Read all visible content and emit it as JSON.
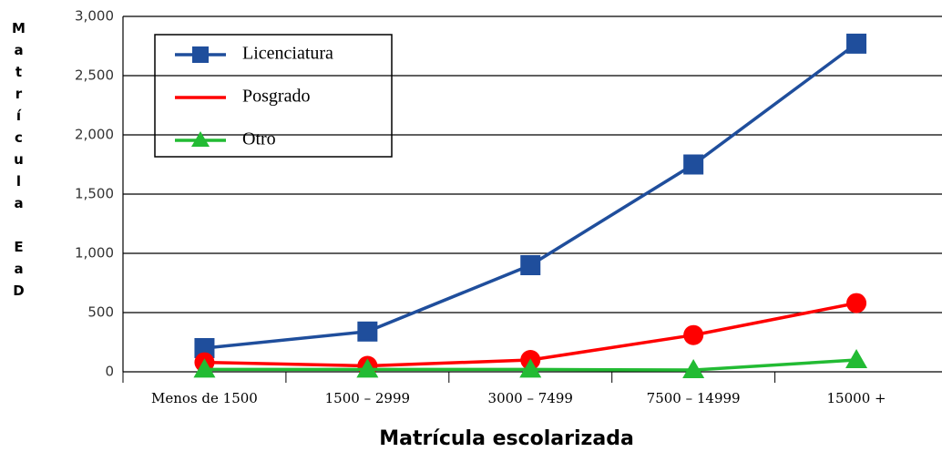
{
  "chart_data": {
    "type": "line",
    "xlabel": "Matrícula escolarizada",
    "ylabel": "Matrícula EaD",
    "categories": [
      "Menos de 1500",
      "1500 – 2999",
      "3000 – 7499",
      "7500 – 14999",
      "15000 +"
    ],
    "series": [
      {
        "name": "Licenciatura",
        "color": "#1f4e9c",
        "marker": "square",
        "values": [
          200,
          340,
          900,
          1750,
          2770
        ]
      },
      {
        "name": "Posgrado",
        "color": "#ff0000",
        "marker": "circle",
        "values": [
          80,
          50,
          100,
          310,
          580
        ]
      },
      {
        "name": "Otro",
        "color": "#22bb33",
        "marker": "triangle",
        "values": [
          20,
          20,
          20,
          15,
          100
        ]
      }
    ],
    "ylim": [
      0,
      3000
    ],
    "yticks": [
      0,
      500,
      {
        "value": 1000,
        "label": "1,000"
      },
      {
        "value": 1500,
        "label": "1,500"
      },
      {
        "value": 2000,
        "label": "2,000"
      },
      {
        "value": 2500,
        "label": "2,500"
      },
      {
        "value": 3000,
        "label": "3,000"
      }
    ],
    "grid": true
  }
}
